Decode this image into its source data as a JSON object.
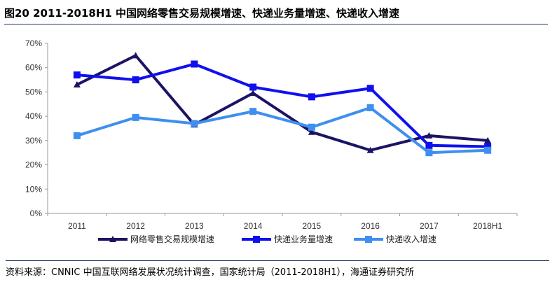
{
  "figure": {
    "title": "图20  2011-2018H1 中国网络零售交易规模增速、快递业务量增速、快递收入增速",
    "source": "资料来源：CNNIC 中国互联网络发展状况统计调查，国家统计局（2011-2018H1），海通证券研究所"
  },
  "chart_data": {
    "type": "line",
    "categories": [
      "2011",
      "2012",
      "2013",
      "2014",
      "2015",
      "2016",
      "2017",
      "2018H1"
    ],
    "ylim": [
      0,
      70
    ],
    "yticks": [
      "0%",
      "10%",
      "20%",
      "30%",
      "40%",
      "50%",
      "60%",
      "70%"
    ],
    "grid": false,
    "legend_position": "bottom",
    "series": [
      {
        "name": "网络零售交易规模增速",
        "color": "#1b1464",
        "marker": "triangle",
        "values": [
          53,
          65,
          36.5,
          49.5,
          33.5,
          26,
          32,
          30
        ]
      },
      {
        "name": "快递业务量增速",
        "color": "#1010ee",
        "marker": "square",
        "values": [
          57,
          55,
          61.5,
          52,
          48,
          51.5,
          28,
          27.5
        ]
      },
      {
        "name": "快递收入增速",
        "color": "#3e8fef",
        "marker": "square",
        "values": [
          32,
          39.5,
          37,
          42,
          35.5,
          43.5,
          25,
          26
        ]
      }
    ]
  }
}
